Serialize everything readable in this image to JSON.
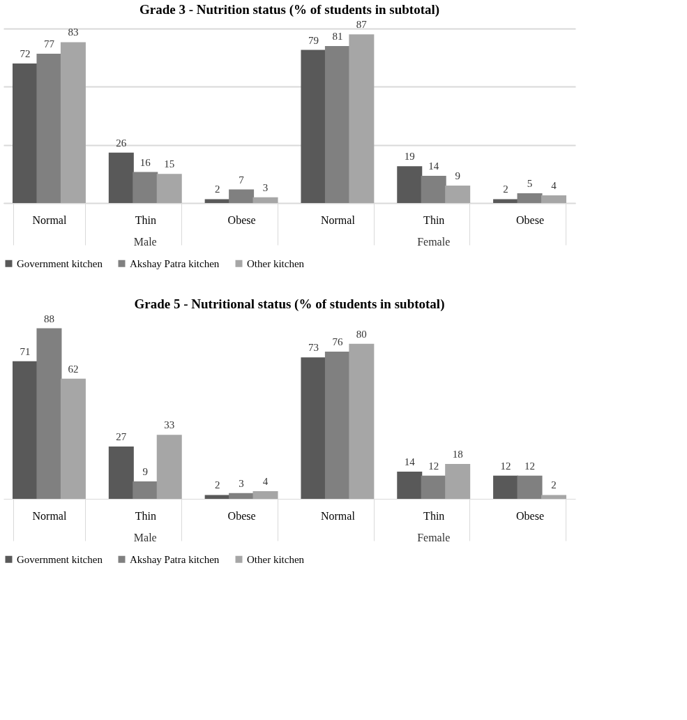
{
  "chart_data": [
    {
      "type": "bar",
      "title": "Grade 3 - Nutrition status (% of students in subtotal)",
      "categories": [
        "Normal",
        "Thin",
        "Obese",
        "Normal",
        "Thin",
        "Obese"
      ],
      "series": [
        {
          "name": "Government kitchen",
          "color": "#595959",
          "values": [
            72,
            26,
            2,
            79,
            19,
            2
          ]
        },
        {
          "name": "Akshay Patra kitchen",
          "color": "#808080",
          "values": [
            77,
            16,
            7,
            81,
            14,
            5
          ]
        },
        {
          "name": "Other kitchen",
          "color": "#a6a6a6",
          "values": [
            83,
            15,
            3,
            87,
            9,
            4
          ]
        }
      ],
      "annotations": [
        "Male",
        "Female"
      ],
      "ylim": [
        0,
        90
      ],
      "yticks": [
        {
          "value": 0,
          "label": null
        },
        {
          "value": 30,
          "label": null
        },
        {
          "value": 60,
          "label": null
        },
        {
          "value": 90,
          "label": null
        }
      ],
      "grid": "y",
      "tick_labels": "x",
      "data_labels": true,
      "legend": "bottom"
    },
    {
      "type": "bar",
      "title": "Grade 5 - Nutritional status (% of students in subtotal)",
      "categories": [
        "Normal",
        "Thin",
        "Obese",
        "Normal",
        "Thin",
        "Obese"
      ],
      "series": [
        {
          "name": "Government kitchen",
          "color": "#595959",
          "values": [
            71,
            27,
            2,
            73,
            14,
            12
          ]
        },
        {
          "name": "Akshay Patra kitchen",
          "color": "#808080",
          "values": [
            88,
            9,
            3,
            76,
            12,
            12
          ]
        },
        {
          "name": "Other kitchen",
          "color": "#a6a6a6",
          "values": [
            62,
            33,
            4,
            80,
            18,
            2
          ]
        }
      ],
      "annotations": [
        "Male",
        "Female"
      ],
      "yticks": [
        {
          "value": 0,
          "label": null
        }
      ],
      "grid": false,
      "tick_labels": "x",
      "data_labels": true,
      "legend": "bottom"
    }
  ]
}
